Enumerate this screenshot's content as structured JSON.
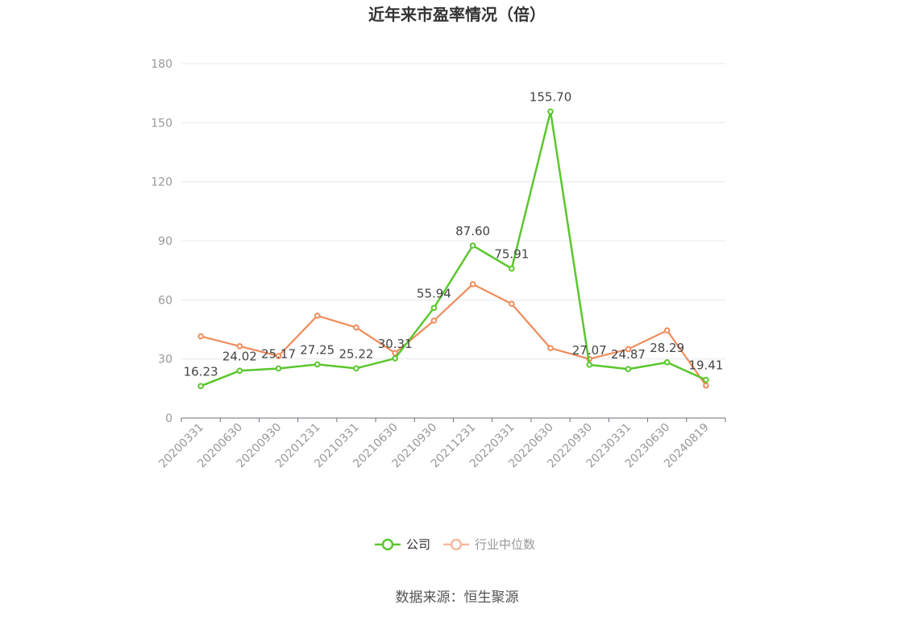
{
  "chart_data": {
    "type": "line",
    "title": "近年来市盈率情况（倍）",
    "source": "数据来源：恒生聚源",
    "categories": [
      "20200331",
      "20200630",
      "20200930",
      "20201231",
      "20210331",
      "20210630",
      "20210930",
      "20211231",
      "20220331",
      "20220630",
      "20220930",
      "20230331",
      "20230630",
      "20240819"
    ],
    "ylim": [
      0,
      180
    ],
    "yticks": [
      0,
      30,
      60,
      90,
      120,
      150,
      180
    ],
    "grid": true,
    "legend_position": "bottom-center",
    "series": [
      {
        "name": "公司",
        "color": "#5ac72d",
        "values": [
          16.23,
          24.02,
          25.17,
          27.25,
          25.22,
          30.31,
          55.94,
          87.6,
          75.91,
          155.7,
          27.07,
          24.87,
          28.29,
          19.41
        ],
        "labels": [
          "16.23",
          "24.02",
          "25.17",
          "27.25",
          "25.22",
          "30.31",
          "55.94",
          "87.60",
          "75.91",
          "155.70",
          "27.07",
          "24.87",
          "28.29",
          "19.41"
        ]
      },
      {
        "name": "行业中位数",
        "color": "#f08c5b",
        "legend_color": "#f6b9a0",
        "values": [
          41.5,
          36.5,
          31.5,
          52.0,
          46.0,
          33.0,
          49.5,
          68.0,
          58.0,
          35.5,
          30.0,
          35.0,
          44.5,
          16.5
        ]
      }
    ]
  }
}
